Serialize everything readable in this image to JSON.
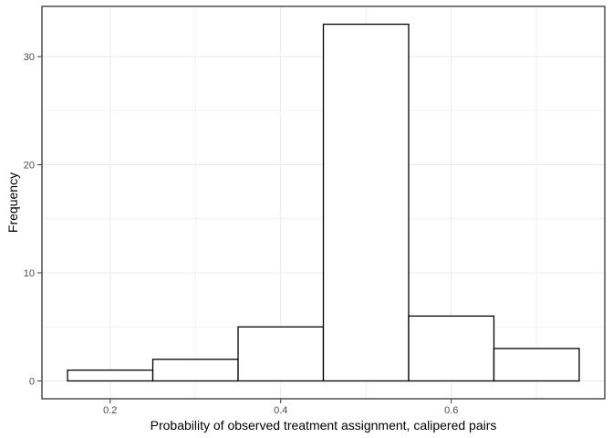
{
  "chart_data": {
    "type": "histogram",
    "title": "",
    "xlabel": "Probability of observed treatment assignment, calipered pairs",
    "ylabel": "Frequency",
    "bins": {
      "start": 0.15,
      "width": 0.1,
      "edges": [
        0.15,
        0.25,
        0.35,
        0.45,
        0.55,
        0.65,
        0.75
      ]
    },
    "counts": [
      1,
      2,
      5,
      33,
      6,
      3
    ],
    "xlim": [
      0.12,
      0.78
    ],
    "ylim": [
      -1.65,
      34.65
    ],
    "x_ticks": {
      "values": [
        0.2,
        0.4,
        0.6
      ],
      "labels": [
        "0.2",
        "0.4",
        "0.6"
      ]
    },
    "y_ticks": {
      "values": [
        0,
        10,
        20,
        30
      ],
      "labels": [
        "0",
        "10",
        "20",
        "30"
      ]
    },
    "x_minor_gridlines": [
      0.3,
      0.5,
      0.7
    ],
    "y_minor_gridlines": [
      5,
      15,
      25
    ],
    "grid": true,
    "legend": false,
    "style": {
      "background": "#FFFFFF",
      "panel_background": "#FFFFFF",
      "panel_border": "#333333",
      "grid_major": "#EBEBEB",
      "grid_minor": "#F1F1F1",
      "bar_fill": "#FFFFFF",
      "bar_stroke": "#000000",
      "tick_mark_color": "#333333",
      "tick_label_color": "#4D4D4D",
      "axis_title_color": "#000000"
    }
  }
}
